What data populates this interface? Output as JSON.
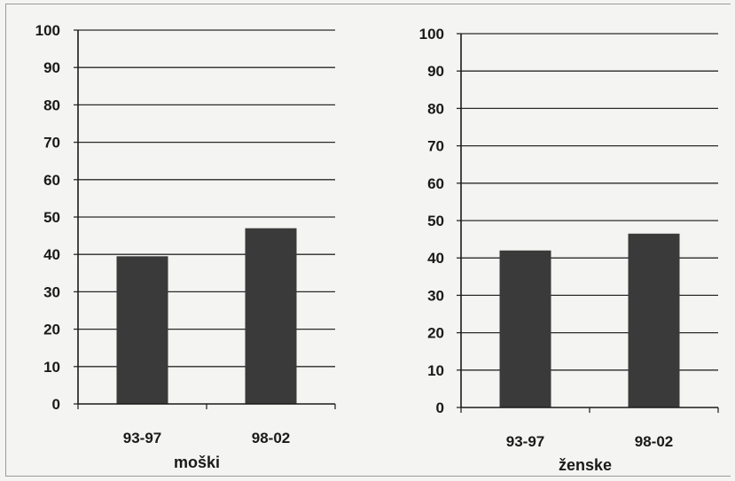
{
  "chart_data": [
    {
      "type": "bar",
      "categories": [
        "93-97",
        "98-02"
      ],
      "values": [
        39.5,
        47
      ],
      "xlabel": "moški",
      "ylabel": "",
      "ylim": [
        0,
        100
      ],
      "yticks": [
        0,
        10,
        20,
        30,
        40,
        50,
        60,
        70,
        80,
        90,
        100
      ],
      "grid": true,
      "legend": "none",
      "bar_color": "#3a3a3a"
    },
    {
      "type": "bar",
      "categories": [
        "93-97",
        "98-02"
      ],
      "values": [
        42,
        46.5
      ],
      "xlabel": "ženske",
      "ylabel": "",
      "ylim": [
        0,
        100
      ],
      "yticks": [
        0,
        10,
        20,
        30,
        40,
        50,
        60,
        70,
        80,
        90,
        100
      ],
      "grid": true,
      "legend": "none",
      "bar_color": "#3a3a3a"
    }
  ]
}
